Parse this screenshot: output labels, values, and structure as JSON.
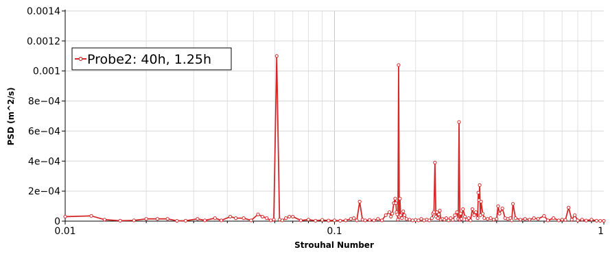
{
  "chart_data": {
    "type": "line",
    "xscale": "log",
    "xlabel": "Strouhal Number",
    "ylabel": "PSD (m^2/s)",
    "xlim": [
      0.01,
      1
    ],
    "ylim": [
      0,
      0.0014
    ],
    "xticks": [
      {
        "value": 0.01,
        "label": "0.01"
      },
      {
        "value": 0.1,
        "label": "0.1"
      },
      {
        "value": 1,
        "label": "1"
      }
    ],
    "yticks": [
      {
        "value": 0,
        "label": "0"
      },
      {
        "value": 0.0002,
        "label": "2e−04"
      },
      {
        "value": 0.0004,
        "label": "4e−04"
      },
      {
        "value": 0.0006,
        "label": "6e−04"
      },
      {
        "value": 0.0008,
        "label": "8e−04"
      },
      {
        "value": 0.001,
        "label": "0.001"
      },
      {
        "value": 0.0012,
        "label": "0.0012"
      },
      {
        "value": 0.0014,
        "label": "0.0014"
      }
    ],
    "grid": true,
    "legend_position": "top-left",
    "series": [
      {
        "name": "Probe2: 40h, 1.25h",
        "color": "#d62728",
        "marker": "circle",
        "x": [
          0.01,
          0.0125,
          0.014,
          0.016,
          0.018,
          0.02,
          0.022,
          0.024,
          0.026,
          0.028,
          0.031,
          0.033,
          0.036,
          0.038,
          0.041,
          0.043,
          0.046,
          0.049,
          0.052,
          0.054,
          0.056,
          0.058,
          0.0595,
          0.061,
          0.0625,
          0.064,
          0.066,
          0.068,
          0.07,
          0.075,
          0.08,
          0.085,
          0.09,
          0.095,
          0.1,
          0.105,
          0.11,
          0.115,
          0.118,
          0.121,
          0.124,
          0.127,
          0.13,
          0.135,
          0.14,
          0.145,
          0.15,
          0.155,
          0.16,
          0.162,
          0.164,
          0.166,
          0.168,
          0.169,
          0.17,
          0.171,
          0.172,
          0.173,
          0.174,
          0.175,
          0.176,
          0.178,
          0.18,
          0.182,
          0.185,
          0.19,
          0.195,
          0.2,
          0.205,
          0.21,
          0.215,
          0.22,
          0.225,
          0.23,
          0.232,
          0.234,
          0.236,
          0.238,
          0.24,
          0.242,
          0.244,
          0.246,
          0.248,
          0.252,
          0.256,
          0.26,
          0.265,
          0.27,
          0.275,
          0.28,
          0.285,
          0.288,
          0.29,
          0.292,
          0.294,
          0.296,
          0.3,
          0.305,
          0.31,
          0.315,
          0.32,
          0.325,
          0.33,
          0.335,
          0.34,
          0.342,
          0.344,
          0.346,
          0.348,
          0.35,
          0.355,
          0.36,
          0.37,
          0.38,
          0.39,
          0.4,
          0.405,
          0.41,
          0.42,
          0.43,
          0.44,
          0.45,
          0.455,
          0.46,
          0.47,
          0.49,
          0.51,
          0.53,
          0.55,
          0.57,
          0.6,
          0.62,
          0.65,
          0.68,
          0.7,
          0.72,
          0.74,
          0.76,
          0.78,
          0.8,
          0.83,
          0.86,
          0.9,
          0.94,
          0.97,
          1.0
        ],
        "y": [
          3e-05,
          3.5e-05,
          1e-05,
          3e-06,
          5e-06,
          1.5e-05,
          1.5e-05,
          1.5e-05,
          2e-06,
          3e-06,
          1.5e-05,
          5e-06,
          2e-05,
          5e-06,
          3e-05,
          2e-05,
          2e-05,
          5e-06,
          4.5e-05,
          3e-05,
          2e-05,
          5e-06,
          1e-05,
          0.0011,
          1e-05,
          5e-06,
          2e-05,
          3e-05,
          3e-05,
          5e-06,
          1e-05,
          3e-06,
          8e-06,
          4e-06,
          5e-06,
          3e-06,
          5e-06,
          1.5e-05,
          2e-05,
          5e-06,
          0.00013,
          1e-05,
          5e-06,
          8e-06,
          5e-06,
          1.5e-05,
          5e-06,
          4e-05,
          6e-05,
          3e-05,
          5e-05,
          0.00012,
          0.00015,
          0.00012,
          6e-05,
          4.5e-05,
          1e-05,
          0.00104,
          3e-05,
          0.00015,
          4e-05,
          2e-05,
          6.5e-05,
          4e-05,
          1.5e-05,
          1e-05,
          5e-06,
          8e-06,
          5e-06,
          1.5e-05,
          5e-06,
          1e-05,
          5e-06,
          2e-05,
          5e-05,
          6e-05,
          0.00039,
          3e-05,
          6e-05,
          2e-05,
          4.5e-05,
          7e-05,
          1e-05,
          1.5e-05,
          1e-05,
          2e-05,
          5e-06,
          2e-05,
          8e-06,
          4e-05,
          6e-05,
          1.5e-05,
          0.00066,
          1e-05,
          5e-05,
          1.5e-05,
          8e-05,
          3e-05,
          1e-05,
          2e-05,
          5e-06,
          8e-05,
          4e-05,
          6e-05,
          2e-05,
          0.00019,
          0.00014,
          0.00024,
          4e-05,
          0.00013,
          5e-05,
          2e-05,
          1.5e-05,
          2e-05,
          1e-05,
          1.5e-05,
          0.0001,
          5e-05,
          8.5e-05,
          2e-05,
          1.5e-05,
          2e-05,
          5e-06,
          0.000115,
          2e-05,
          1e-05,
          1.5e-05,
          1e-05,
          2e-05,
          1.5e-05,
          3.5e-05,
          5e-06,
          2e-05,
          5e-06,
          1e-05,
          8e-06,
          9e-05,
          1e-05,
          4e-05,
          5e-06,
          1e-05,
          4e-06,
          1e-05,
          3e-06,
          2e-06,
          2e-06
        ]
      }
    ]
  }
}
